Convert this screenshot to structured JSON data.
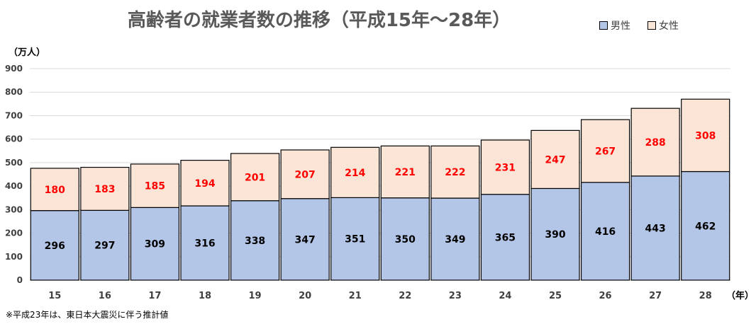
{
  "title": "高齢者の就業者数の推移（平成15年～28年）",
  "legend": {
    "male": "男性",
    "female": "女性"
  },
  "note": "※平成23年は、東日本大震災に伴う推計値",
  "colors": {
    "male": "#b4c6e7",
    "female": "#fbe5d6",
    "female_label": "#ff0000",
    "grid": "#d9d9d9"
  },
  "chart_data": {
    "type": "bar",
    "stacked": true,
    "ylabel": "（万人）",
    "xlabel": "（年）",
    "ylim": [
      0,
      900
    ],
    "yticks": [
      0,
      100,
      200,
      300,
      400,
      500,
      600,
      700,
      800,
      900
    ],
    "categories": [
      "15",
      "16",
      "17",
      "18",
      "19",
      "20",
      "21",
      "22",
      "23",
      "24",
      "25",
      "26",
      "27",
      "28"
    ],
    "series": [
      {
        "name": "男性",
        "values": [
          296,
          297,
          309,
          316,
          338,
          347,
          351,
          350,
          349,
          365,
          390,
          416,
          443,
          462
        ]
      },
      {
        "name": "女性",
        "values": [
          180,
          183,
          185,
          194,
          201,
          207,
          214,
          221,
          222,
          231,
          247,
          267,
          288,
          308
        ]
      }
    ],
    "grid": true,
    "legend_position": "top-right"
  }
}
